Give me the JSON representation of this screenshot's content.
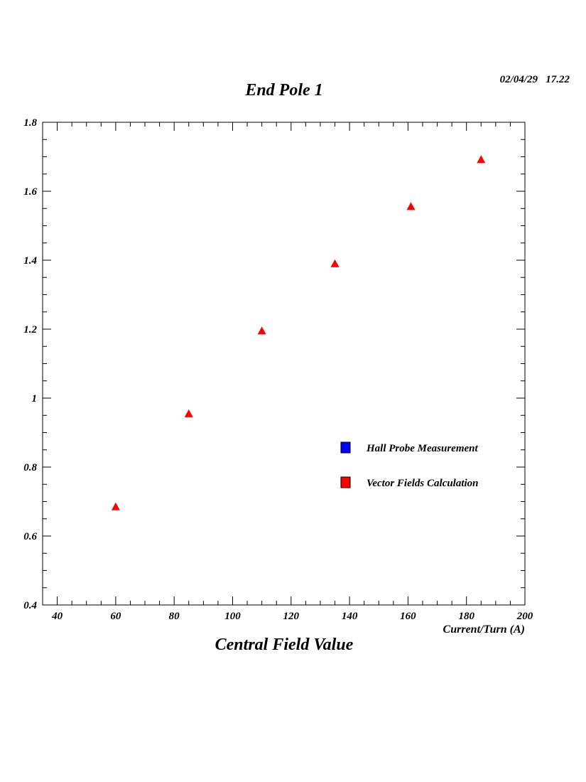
{
  "header": {
    "timestamp": "02/04/29   17.22"
  },
  "chart_data": {
    "type": "scatter",
    "title": "End Pole 1",
    "subtitle": "Central Field Value",
    "xlabel": "Current/Turn (A)",
    "ylabel_fragment": "/",
    "xlim": [
      35,
      200
    ],
    "ylim": [
      0.4,
      1.8
    ],
    "x_ticks": [
      40,
      60,
      80,
      100,
      120,
      140,
      160,
      180,
      200
    ],
    "y_ticks": [
      0.4,
      0.6,
      0.8,
      1,
      1.2,
      1.4,
      1.6,
      1.8
    ],
    "y_tick_labels": [
      "0.4",
      "0.6",
      "0.8",
      "1",
      "1.2",
      "1.4",
      "1.6",
      "1.8"
    ],
    "grid": false,
    "legend_position": "right",
    "legend": [
      {
        "name": "Hall Probe Measurement",
        "color": "#0000ff"
      },
      {
        "name": "Vector Fields Calculation",
        "color": "#ff0000"
      }
    ],
    "series": [
      {
        "name": "Vector Fields Calculation",
        "color": "#ff0000",
        "marker": "triangle",
        "x": [
          60,
          85,
          110,
          135,
          161,
          185
        ],
        "y": [
          0.685,
          0.955,
          1.195,
          1.39,
          1.556,
          1.692
        ]
      }
    ]
  }
}
